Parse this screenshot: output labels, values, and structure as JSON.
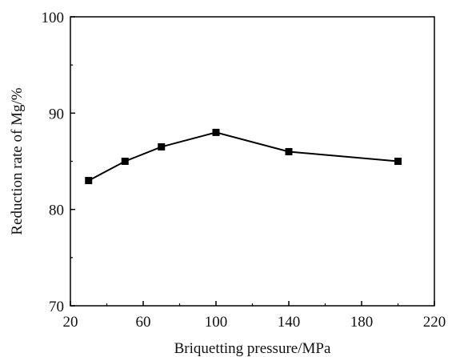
{
  "chart_data": {
    "type": "line",
    "title": "",
    "xlabel": "Briquetting pressure/MPa",
    "ylabel": "Reduction rate of Mg/%",
    "xlim": [
      20,
      220
    ],
    "ylim": [
      70,
      100
    ],
    "xticks": [
      20,
      60,
      100,
      140,
      180,
      220
    ],
    "yticks": [
      70,
      80,
      90,
      100
    ],
    "x_tick_labels": [
      "20",
      "60",
      "100",
      "140",
      "180",
      "220"
    ],
    "y_tick_labels": [
      "70",
      "80",
      "90",
      "100"
    ],
    "grid": false,
    "marker": "square",
    "series": [
      {
        "x": [
          30,
          50,
          70,
          100,
          140,
          200
        ],
        "values": [
          83.0,
          85.0,
          86.5,
          88.0,
          86.0,
          85.0
        ]
      }
    ],
    "colors": {
      "line": "#000000",
      "axis": "#000000"
    }
  }
}
